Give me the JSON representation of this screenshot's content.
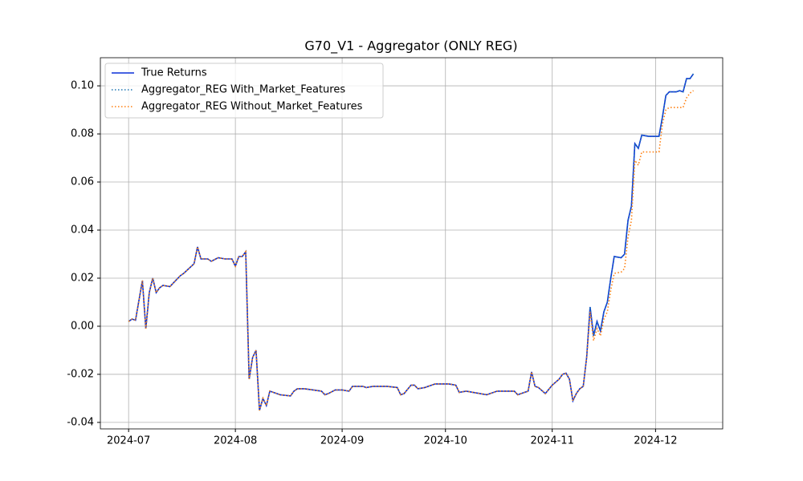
{
  "chart_data": {
    "type": "line",
    "title": "G70_V1 - Aggregator (ONLY REG)",
    "x": [
      0,
      1,
      2,
      4,
      5,
      6,
      7,
      8,
      9,
      10,
      12,
      13,
      15,
      16,
      19,
      20,
      21,
      23,
      24,
      26,
      28,
      30,
      31,
      32,
      33,
      34,
      35,
      36,
      37,
      38,
      39,
      40,
      41,
      43,
      44,
      47,
      48,
      49,
      51,
      56,
      57,
      58,
      60,
      62,
      64,
      65,
      66,
      68,
      69,
      71,
      73,
      75,
      78,
      79,
      80,
      82,
      83,
      84,
      86,
      89,
      91,
      93,
      95,
      96,
      98,
      100,
      102,
      104,
      105,
      107,
      110,
      112,
      113,
      114,
      116,
      117,
      118,
      119,
      121,
      123,
      125,
      126,
      127,
      128,
      129,
      130,
      131,
      132,
      133,
      134,
      135,
      136,
      137,
      138,
      139,
      140,
      141,
      143,
      144,
      145,
      146,
      147,
      148,
      149,
      151,
      153,
      154,
      155,
      156,
      157,
      159,
      160,
      161,
      162,
      163,
      164
    ],
    "series": [
      {
        "name": "True Returns",
        "color": "#0a2fd8",
        "linestyle": "solid",
        "values": [
          0.002,
          0.003,
          0.0025,
          0.019,
          -0.001,
          0.014,
          0.02,
          0.014,
          0.016,
          0.017,
          0.0165,
          0.018,
          0.021,
          0.022,
          0.026,
          0.033,
          0.028,
          0.028,
          0.027,
          0.0285,
          0.028,
          0.028,
          0.025,
          0.029,
          0.029,
          0.031,
          -0.022,
          -0.013,
          -0.01,
          -0.035,
          -0.03,
          -0.033,
          -0.027,
          -0.028,
          -0.0285,
          -0.029,
          -0.027,
          -0.026,
          -0.026,
          -0.027,
          -0.0285,
          -0.028,
          -0.0265,
          -0.0265,
          -0.027,
          -0.025,
          -0.025,
          -0.025,
          -0.0255,
          -0.025,
          -0.025,
          -0.025,
          -0.0255,
          -0.0285,
          -0.028,
          -0.0245,
          -0.0245,
          -0.026,
          -0.0255,
          -0.024,
          -0.024,
          -0.024,
          -0.0245,
          -0.0275,
          -0.027,
          -0.0275,
          -0.028,
          -0.0285,
          -0.028,
          -0.027,
          -0.027,
          -0.027,
          -0.0285,
          -0.028,
          -0.027,
          -0.019,
          -0.025,
          -0.0255,
          -0.028,
          -0.0245,
          -0.022,
          -0.02,
          -0.0195,
          -0.022,
          -0.031,
          -0.028,
          -0.026,
          -0.025,
          -0.013,
          0.008,
          -0.004,
          0.002,
          -0.002,
          0.006,
          0.01,
          0.02,
          0.029,
          0.0285,
          0.03,
          0.044,
          0.05,
          0.076,
          0.074,
          0.0795,
          0.079,
          0.079,
          0.079,
          0.087,
          0.096,
          0.0975,
          0.0975,
          0.098,
          0.0975,
          0.103,
          0.103,
          0.105
        ]
      },
      {
        "name": "Aggregator_REG With_Market_Features",
        "color": "#1f77b4",
        "linestyle": "dotted",
        "values": [
          0.002,
          0.003,
          0.0025,
          0.019,
          -0.001,
          0.014,
          0.02,
          0.014,
          0.016,
          0.017,
          0.0165,
          0.018,
          0.021,
          0.022,
          0.026,
          0.033,
          0.028,
          0.028,
          0.027,
          0.0285,
          0.028,
          0.028,
          0.025,
          0.029,
          0.029,
          0.031,
          -0.022,
          -0.013,
          -0.01,
          -0.035,
          -0.03,
          -0.033,
          -0.027,
          -0.028,
          -0.0285,
          -0.029,
          -0.027,
          -0.026,
          -0.026,
          -0.027,
          -0.0285,
          -0.028,
          -0.0265,
          -0.0265,
          -0.027,
          -0.025,
          -0.025,
          -0.025,
          -0.0255,
          -0.025,
          -0.025,
          -0.025,
          -0.0255,
          -0.0285,
          -0.028,
          -0.0245,
          -0.0245,
          -0.026,
          -0.0255,
          -0.024,
          -0.024,
          -0.024,
          -0.0245,
          -0.0275,
          -0.027,
          -0.0275,
          -0.028,
          -0.0285,
          -0.028,
          -0.027,
          -0.027,
          -0.027,
          -0.0285,
          -0.028,
          -0.027,
          -0.019,
          -0.025,
          -0.0255,
          -0.028,
          -0.0245,
          -0.022,
          -0.02,
          -0.0195,
          -0.022,
          -0.031,
          -0.028,
          -0.026,
          -0.025,
          -0.013,
          0.008,
          -0.004,
          0.002,
          -0.002,
          0.006,
          0.01,
          0.02,
          0.029,
          0.0285,
          0.03,
          0.044,
          0.05,
          0.076,
          0.074,
          0.0795,
          0.079,
          0.079,
          0.079,
          0.087,
          0.096,
          0.0975,
          0.0975,
          0.098,
          0.0975,
          0.103,
          0.103,
          0.105
        ]
      },
      {
        "name": "Aggregator_REG Without_Market_Features",
        "color": "#ff7f0e",
        "linestyle": "dotted",
        "values": [
          0.002,
          0.003,
          0.0025,
          0.019,
          -0.001,
          0.014,
          0.02,
          0.014,
          0.016,
          0.017,
          0.0165,
          0.018,
          0.021,
          0.022,
          0.026,
          0.033,
          0.028,
          0.028,
          0.027,
          0.0285,
          0.028,
          0.028,
          0.025,
          0.029,
          0.029,
          0.031,
          -0.022,
          -0.013,
          -0.01,
          -0.035,
          -0.03,
          -0.033,
          -0.027,
          -0.028,
          -0.0285,
          -0.029,
          -0.027,
          -0.026,
          -0.026,
          -0.027,
          -0.0285,
          -0.028,
          -0.0265,
          -0.0265,
          -0.027,
          -0.025,
          -0.025,
          -0.025,
          -0.0255,
          -0.025,
          -0.025,
          -0.025,
          -0.0255,
          -0.0285,
          -0.028,
          -0.0245,
          -0.0245,
          -0.026,
          -0.0255,
          -0.024,
          -0.024,
          -0.024,
          -0.0245,
          -0.0275,
          -0.027,
          -0.0275,
          -0.028,
          -0.0285,
          -0.028,
          -0.027,
          -0.027,
          -0.027,
          -0.0285,
          -0.028,
          -0.027,
          -0.019,
          -0.025,
          -0.0255,
          -0.028,
          -0.0245,
          -0.022,
          -0.02,
          -0.0195,
          -0.022,
          -0.031,
          -0.028,
          -0.026,
          -0.025,
          -0.013,
          0.006,
          -0.006,
          -0.001,
          -0.004,
          0.003,
          0.006,
          0.015,
          0.022,
          0.0225,
          0.024,
          0.037,
          0.044,
          0.069,
          0.067,
          0.0725,
          0.0725,
          0.0725,
          0.0725,
          0.084,
          0.09,
          0.091,
          0.091,
          0.091,
          0.091,
          0.095,
          0.097,
          0.098
        ]
      }
    ],
    "xlim": [
      -8.2,
      172.5
    ],
    "xticks": [
      {
        "value": 0,
        "label": "2024-07"
      },
      {
        "value": 31,
        "label": "2024-08"
      },
      {
        "value": 62,
        "label": "2024-09"
      },
      {
        "value": 92,
        "label": "2024-10"
      },
      {
        "value": 123,
        "label": "2024-11"
      },
      {
        "value": 153,
        "label": "2024-12"
      }
    ],
    "ylim": [
      -0.0427,
      0.1117
    ],
    "yticks": [
      {
        "value": -0.04,
        "label": "-0.04"
      },
      {
        "value": -0.02,
        "label": "-0.02"
      },
      {
        "value": 0,
        "label": "0.00"
      },
      {
        "value": 0.02,
        "label": "0.02"
      },
      {
        "value": 0.04,
        "label": "0.04"
      },
      {
        "value": 0.06,
        "label": "0.06"
      },
      {
        "value": 0.08,
        "label": "0.08"
      },
      {
        "value": 0.1,
        "label": "0.10"
      }
    ],
    "grid": true,
    "legend": "upper left"
  }
}
